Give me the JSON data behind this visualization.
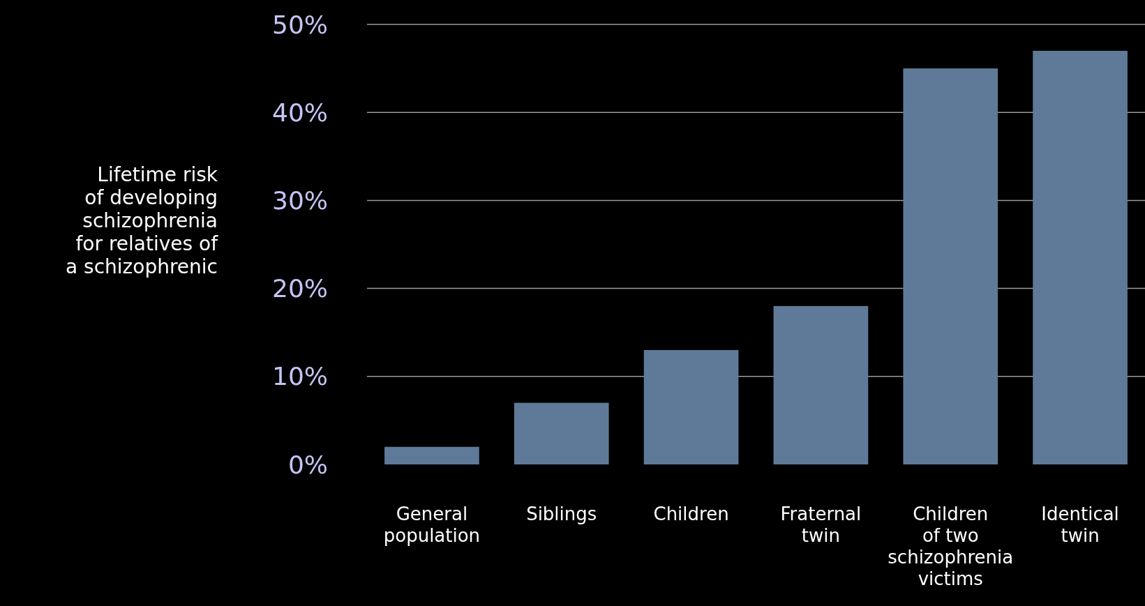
{
  "chart_data": {
    "type": "bar",
    "ylabel": "Lifetime risk\nof developing\nschizophrenia\nfor relatives of\na schizophrenic",
    "categories": [
      "General\npopulation",
      "Siblings",
      "Children",
      "Fraternal\ntwin",
      "Children\nof two\nschizophrenia\nvictims",
      "Identical\ntwin"
    ],
    "values": [
      2,
      7,
      13,
      18,
      45,
      47
    ],
    "color": "#5f7a98",
    "ylim": [
      0,
      50
    ],
    "yticks": [
      {
        "value": 0,
        "label": "0%"
      },
      {
        "value": 10,
        "label": "10%"
      },
      {
        "value": 20,
        "label": "20%"
      },
      {
        "value": 30,
        "label": "30%"
      },
      {
        "value": 40,
        "label": "40%"
      },
      {
        "value": 50,
        "label": "50%"
      }
    ],
    "grid": "y"
  }
}
